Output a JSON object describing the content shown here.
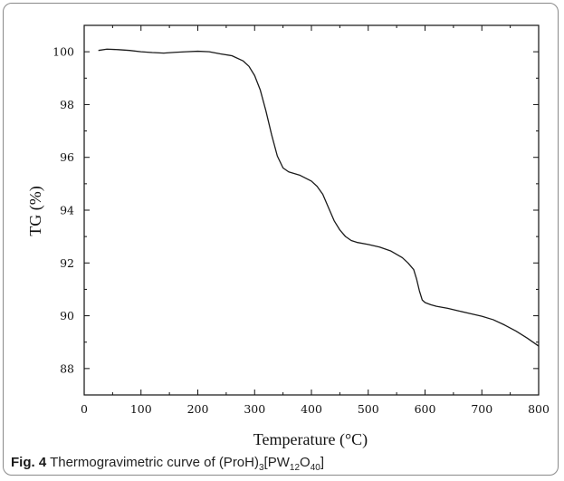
{
  "caption": {
    "label": "Fig. 4",
    "text": "Thermogravimetric curve of",
    "formula_parts": [
      {
        "t": "(ProH)",
        "sub": false
      },
      {
        "t": "3",
        "sub": true
      },
      {
        "t": "[PW",
        "sub": false
      },
      {
        "t": "12",
        "sub": true
      },
      {
        "t": "O",
        "sub": false
      },
      {
        "t": "40",
        "sub": true
      },
      {
        "t": "]",
        "sub": false
      }
    ]
  },
  "chart_data": {
    "type": "line",
    "xlabel": "Temperature (°C)",
    "ylabel": "TG (%)",
    "xlim": [
      0,
      800
    ],
    "ylim": [
      87,
      101
    ],
    "xticks": [
      0,
      100,
      200,
      300,
      400,
      500,
      600,
      700,
      800
    ],
    "yticks": [
      88,
      90,
      92,
      94,
      96,
      98,
      100
    ],
    "grid": false,
    "line_color": "#1a1a1a",
    "series": [
      {
        "x": [
          25,
          40,
          60,
          80,
          100,
          120,
          140,
          160,
          180,
          200,
          220,
          240,
          260,
          280,
          290,
          300,
          310,
          320,
          330,
          340,
          350,
          360,
          380,
          400,
          410,
          420,
          430,
          440,
          450,
          460,
          470,
          480,
          500,
          520,
          540,
          560,
          570,
          580,
          585,
          590,
          595,
          600,
          610,
          620,
          640,
          660,
          680,
          700,
          720,
          740,
          760,
          780,
          800
        ],
        "y": [
          100.05,
          100.1,
          100.08,
          100.05,
          100.0,
          99.97,
          99.95,
          99.98,
          100.0,
          100.02,
          100.0,
          99.92,
          99.85,
          99.65,
          99.45,
          99.1,
          98.55,
          97.75,
          96.85,
          96.05,
          95.6,
          95.45,
          95.32,
          95.1,
          94.9,
          94.6,
          94.1,
          93.6,
          93.25,
          93.0,
          92.85,
          92.78,
          92.7,
          92.6,
          92.45,
          92.2,
          92.0,
          91.75,
          91.4,
          90.95,
          90.6,
          90.5,
          90.42,
          90.36,
          90.28,
          90.18,
          90.08,
          89.98,
          89.85,
          89.65,
          89.42,
          89.15,
          88.85
        ]
      }
    ]
  }
}
